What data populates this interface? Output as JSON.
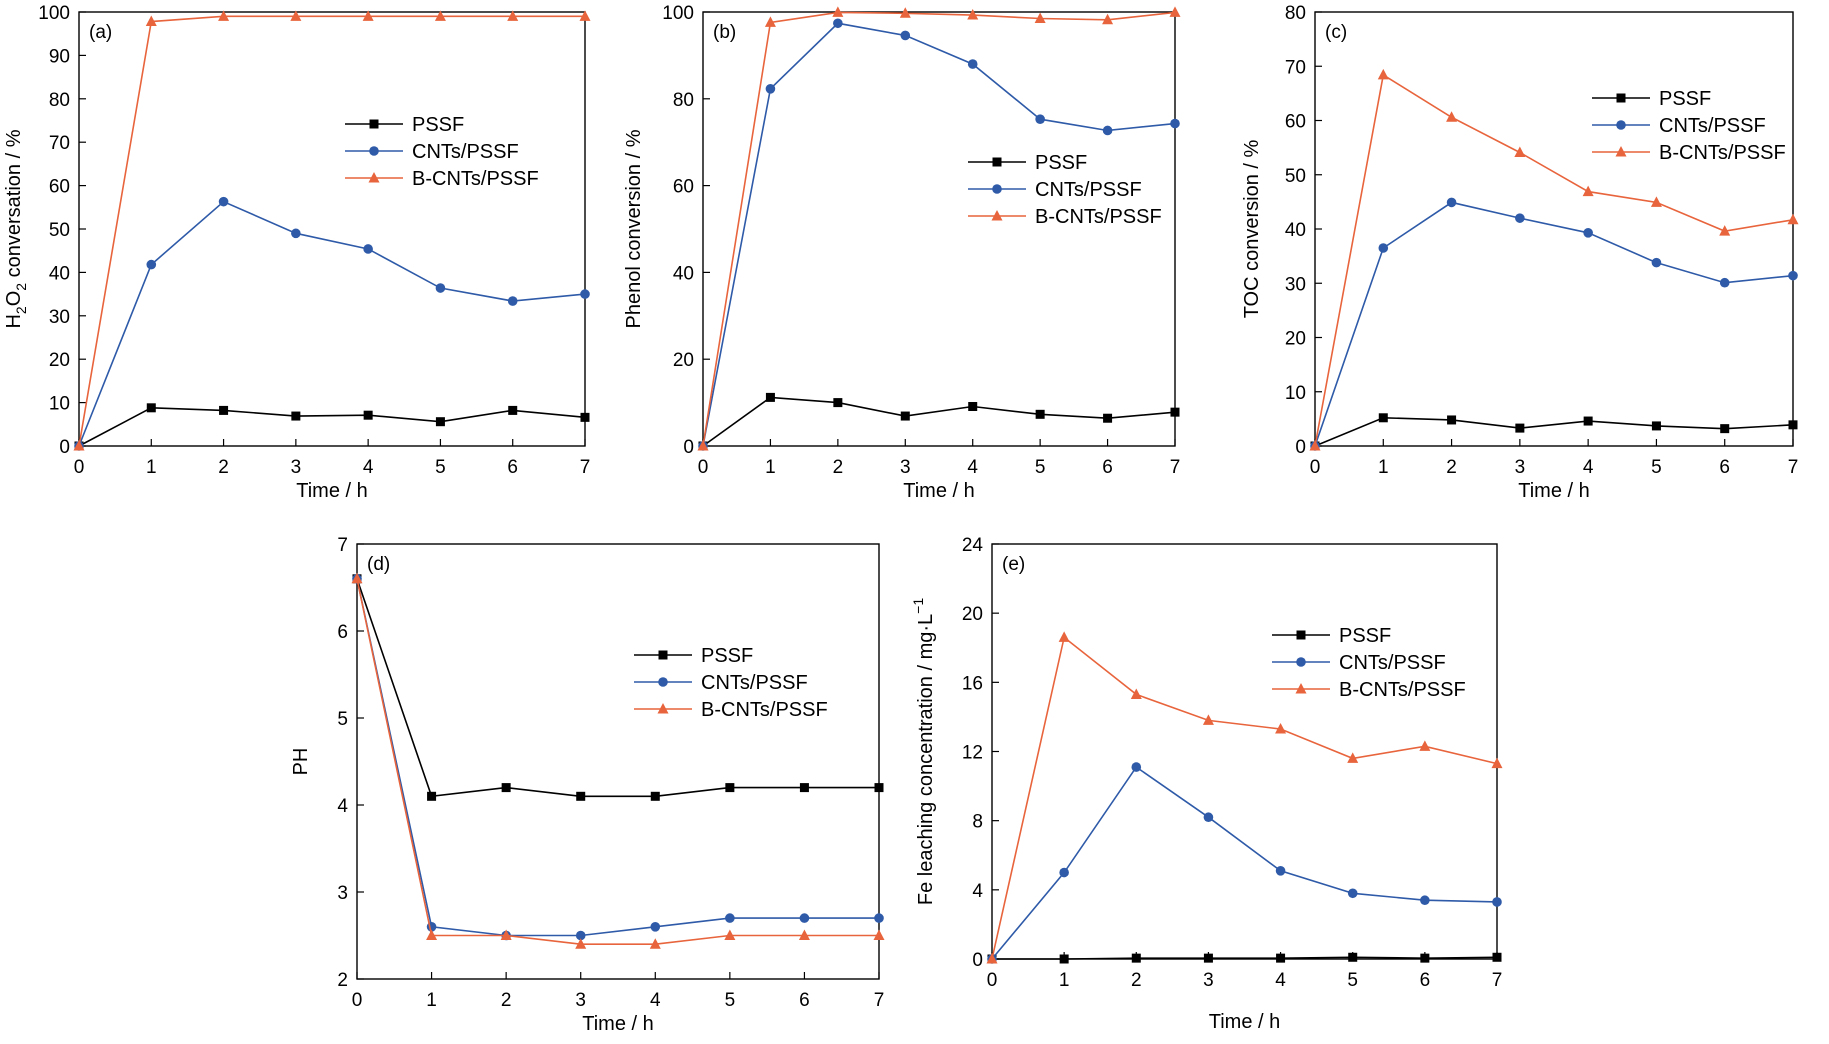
{
  "colors": {
    "PSSF": "#000000",
    "CNTs/PSSF": "#2e5aa8",
    "B-CNTs/PSSF": "#e8643c",
    "axis": "#000000",
    "background": "#ffffff"
  },
  "chart_data": [
    {
      "id": "a",
      "type": "line",
      "panel_label": "(a)",
      "xlabel": "Time / h",
      "ylabel_parts": [
        "H",
        "2",
        "O",
        "2",
        " conversation / %"
      ],
      "x": [
        0,
        1,
        2,
        3,
        4,
        5,
        6,
        7
      ],
      "xlim": [
        0,
        7
      ],
      "ylim": [
        0,
        100
      ],
      "yticks": [
        0,
        10,
        20,
        30,
        40,
        50,
        60,
        70,
        80,
        90,
        100
      ],
      "xticks": [
        0,
        1,
        2,
        3,
        4,
        5,
        6,
        7
      ],
      "grid": false,
      "legend_position": "center-right",
      "series": [
        {
          "name": "PSSF",
          "marker": "square",
          "values": [
            0,
            8.8,
            8.2,
            6.9,
            7.1,
            5.6,
            8.2,
            6.6
          ]
        },
        {
          "name": "CNTs/PSSF",
          "marker": "circle",
          "values": [
            0,
            41.8,
            56.3,
            49.0,
            45.4,
            36.4,
            33.4,
            35.0
          ]
        },
        {
          "name": "B-CNTs/PSSF",
          "marker": "triangle",
          "values": [
            0,
            97.8,
            99.0,
            99.0,
            99.0,
            99.0,
            99.0,
            99.0
          ]
        }
      ]
    },
    {
      "id": "b",
      "type": "line",
      "panel_label": "(b)",
      "xlabel": "Time / h",
      "ylabel_parts": [
        "Phenol conversion / %"
      ],
      "x": [
        0,
        1,
        2,
        3,
        4,
        5,
        6,
        7
      ],
      "xlim": [
        0,
        7
      ],
      "ylim": [
        0,
        100
      ],
      "yticks": [
        0,
        20,
        40,
        60,
        80,
        100
      ],
      "xticks": [
        0,
        1,
        2,
        3,
        4,
        5,
        6,
        7
      ],
      "grid": false,
      "legend_position": "center-right",
      "series": [
        {
          "name": "PSSF",
          "marker": "square",
          "values": [
            0,
            11.2,
            10.0,
            6.9,
            9.1,
            7.3,
            6.4,
            7.8
          ]
        },
        {
          "name": "CNTs/PSSF",
          "marker": "circle",
          "values": [
            0,
            82.3,
            97.4,
            94.6,
            88.0,
            75.3,
            72.7,
            74.3
          ]
        },
        {
          "name": "B-CNTs/PSSF",
          "marker": "triangle",
          "values": [
            0,
            97.6,
            99.9,
            99.7,
            99.3,
            98.5,
            98.2,
            99.9
          ]
        }
      ]
    },
    {
      "id": "c",
      "type": "line",
      "panel_label": "(c)",
      "xlabel": "Time / h",
      "ylabel_parts": [
        "TOC conversion / %"
      ],
      "x": [
        0,
        1,
        2,
        3,
        4,
        5,
        6,
        7
      ],
      "xlim": [
        0,
        7
      ],
      "ylim": [
        0,
        80
      ],
      "yticks": [
        0,
        10,
        20,
        30,
        40,
        50,
        60,
        70,
        80
      ],
      "xticks": [
        0,
        1,
        2,
        3,
        4,
        5,
        6,
        7
      ],
      "grid": false,
      "legend_position": "top-right",
      "series": [
        {
          "name": "PSSF",
          "marker": "square",
          "values": [
            0,
            5.2,
            4.8,
            3.3,
            4.6,
            3.7,
            3.2,
            3.9
          ]
        },
        {
          "name": "CNTs/PSSF",
          "marker": "circle",
          "values": [
            0,
            36.5,
            44.9,
            42.0,
            39.3,
            33.8,
            30.1,
            31.4
          ]
        },
        {
          "name": "B-CNTs/PSSF",
          "marker": "triangle",
          "values": [
            0,
            68.4,
            60.6,
            54.1,
            46.9,
            44.9,
            39.6,
            41.7
          ]
        }
      ]
    },
    {
      "id": "d",
      "type": "line",
      "panel_label": "(d)",
      "xlabel": "Time / h",
      "ylabel_parts": [
        "PH"
      ],
      "x": [
        0,
        1,
        2,
        3,
        4,
        5,
        6,
        7
      ],
      "xlim": [
        0,
        7
      ],
      "ylim": [
        2,
        7
      ],
      "yticks": [
        2,
        3,
        4,
        5,
        6,
        7
      ],
      "xticks": [
        0,
        1,
        2,
        3,
        4,
        5,
        6,
        7
      ],
      "grid": false,
      "legend_position": "center-right",
      "series": [
        {
          "name": "PSSF",
          "marker": "square",
          "values": [
            6.6,
            4.1,
            4.2,
            4.1,
            4.1,
            4.2,
            4.2,
            4.2
          ]
        },
        {
          "name": "CNTs/PSSF",
          "marker": "circle",
          "values": [
            6.6,
            2.6,
            2.5,
            2.5,
            2.6,
            2.7,
            2.7,
            2.7
          ]
        },
        {
          "name": "B-CNTs/PSSF",
          "marker": "triangle",
          "values": [
            6.6,
            2.5,
            2.5,
            2.4,
            2.4,
            2.5,
            2.5,
            2.5
          ]
        }
      ]
    },
    {
      "id": "e",
      "type": "line",
      "panel_label": "(e)",
      "xlabel": "Time / h",
      "ylabel_parts": [
        "Fe leaching concentration / mg·L",
        "−1"
      ],
      "x": [
        0,
        1,
        2,
        3,
        4,
        5,
        6,
        7
      ],
      "xlim": [
        0,
        7
      ],
      "ylim": [
        0,
        24
      ],
      "yticks": [
        0,
        4,
        8,
        12,
        16,
        20,
        24
      ],
      "xticks": [
        0,
        1,
        2,
        3,
        4,
        5,
        6,
        7
      ],
      "grid": false,
      "legend_position": "top-right",
      "series": [
        {
          "name": "PSSF",
          "marker": "square",
          "values": [
            0,
            0,
            0.05,
            0.05,
            0.05,
            0.1,
            0.05,
            0.1
          ]
        },
        {
          "name": "CNTs/PSSF",
          "marker": "circle",
          "values": [
            0,
            5.0,
            11.1,
            8.2,
            5.1,
            3.8,
            3.4,
            3.3
          ]
        },
        {
          "name": "B-CNTs/PSSF",
          "marker": "triangle",
          "values": [
            0,
            18.6,
            15.3,
            13.8,
            13.3,
            11.6,
            12.3,
            11.3
          ]
        }
      ]
    }
  ]
}
